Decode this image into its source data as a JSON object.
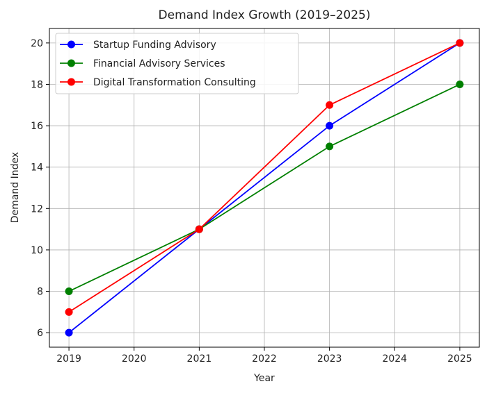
{
  "chart_data": {
    "type": "line",
    "title": "Demand Index Growth (2019–2025)",
    "xlabel": "Year",
    "ylabel": "Demand Index",
    "x": [
      2019,
      2021,
      2023,
      2025
    ],
    "x_ticks": [
      "2019",
      "2020",
      "2021",
      "2022",
      "2023",
      "2024",
      "2025"
    ],
    "y_ticks": [
      "6",
      "8",
      "10",
      "12",
      "14",
      "16",
      "18",
      "20"
    ],
    "xlim": [
      2018.7,
      2025.3
    ],
    "ylim": [
      5.3,
      20.7
    ],
    "grid": true,
    "legend_position": "top-left",
    "series": [
      {
        "name": "Startup Funding Advisory",
        "color": "#0000ff",
        "values": [
          6,
          11,
          16,
          20
        ]
      },
      {
        "name": "Financial Advisory Services",
        "color": "#008000",
        "values": [
          8,
          11,
          15,
          18
        ]
      },
      {
        "name": "Digital Transformation Consulting",
        "color": "#ff0000",
        "values": [
          7,
          11,
          17,
          20
        ]
      }
    ]
  }
}
